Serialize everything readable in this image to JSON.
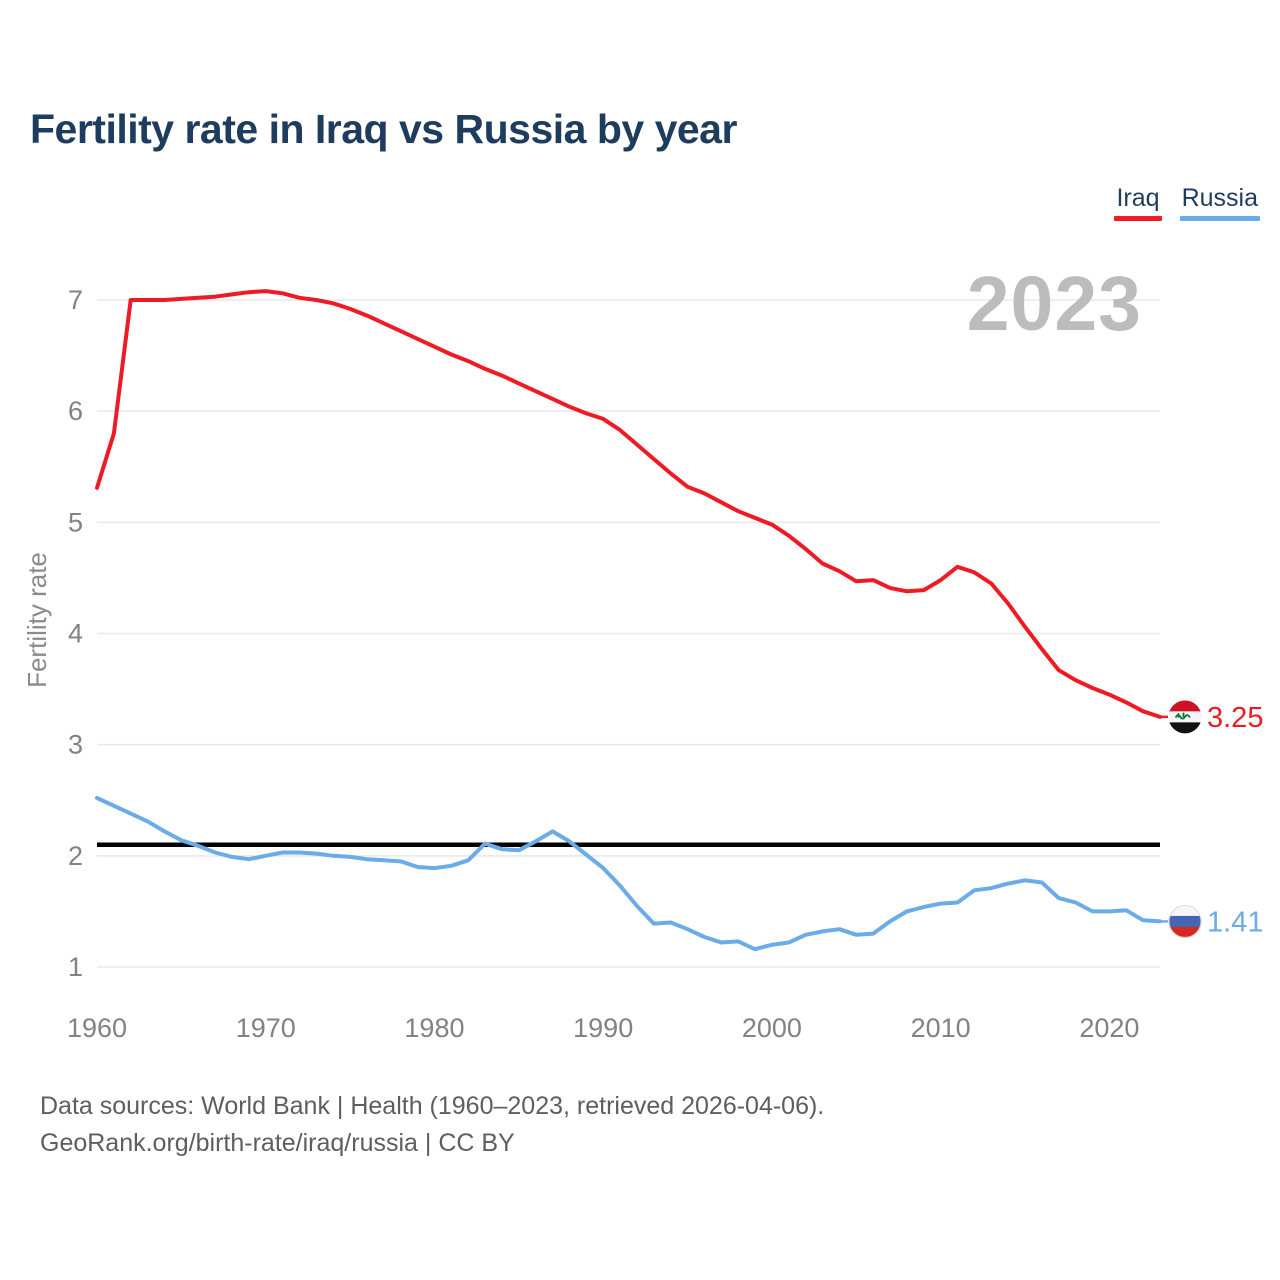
{
  "title": "Fertility rate in Iraq vs Russia by year",
  "watermark": "2023",
  "legend": {
    "items": [
      {
        "label": "Iraq",
        "color": "#ee1b24"
      },
      {
        "label": "Russia",
        "color": "#6aabe8"
      }
    ]
  },
  "end_labels": {
    "iraq": {
      "value": "3.25",
      "flag": "iraq-flag"
    },
    "russia": {
      "value": "1.41",
      "flag": "russia-flag"
    }
  },
  "footer": {
    "line1": "Data sources: World Bank | Health (1960–2023, retrieved 2026-04-06).",
    "line2": "GeoRank.org/birth-rate/iraq/russia | CC BY"
  },
  "chart_data": {
    "type": "line",
    "title": "Fertility rate in Iraq vs Russia by year",
    "xlabel": "",
    "ylabel": "Fertility rate",
    "xlim": [
      1960,
      2023
    ],
    "ylim": [
      1,
      7
    ],
    "x_ticks": [
      1960,
      1970,
      1980,
      1990,
      2000,
      2010,
      2020
    ],
    "y_ticks": [
      1,
      2,
      3,
      4,
      5,
      6,
      7
    ],
    "grid": "horizontal",
    "legend_position": "top-right",
    "reference_line": {
      "value": 2.1,
      "color": "#000000",
      "name": "replacement-rate"
    },
    "x": [
      1960,
      1961,
      1962,
      1963,
      1964,
      1965,
      1966,
      1967,
      1968,
      1969,
      1970,
      1971,
      1972,
      1973,
      1974,
      1975,
      1976,
      1977,
      1978,
      1979,
      1980,
      1981,
      1982,
      1983,
      1984,
      1985,
      1986,
      1987,
      1988,
      1989,
      1990,
      1991,
      1992,
      1993,
      1994,
      1995,
      1996,
      1997,
      1998,
      1999,
      2000,
      2001,
      2002,
      2003,
      2004,
      2005,
      2006,
      2007,
      2008,
      2009,
      2010,
      2011,
      2012,
      2013,
      2014,
      2015,
      2016,
      2017,
      2018,
      2019,
      2020,
      2021,
      2022,
      2023
    ],
    "series": [
      {
        "name": "Iraq",
        "color": "#ee1b24",
        "end_value": 3.25,
        "values": [
          5.31,
          5.8,
          7.0,
          7.0,
          7.0,
          7.01,
          7.02,
          7.03,
          7.05,
          7.07,
          7.08,
          7.06,
          7.02,
          7.0,
          6.97,
          6.92,
          6.86,
          6.79,
          6.72,
          6.65,
          6.58,
          6.51,
          6.45,
          6.38,
          6.32,
          6.25,
          6.18,
          6.11,
          6.04,
          5.98,
          5.93,
          5.83,
          5.7,
          5.57,
          5.44,
          5.32,
          5.26,
          5.18,
          5.1,
          5.04,
          4.98,
          4.88,
          4.76,
          4.63,
          4.56,
          4.47,
          4.48,
          4.41,
          4.38,
          4.39,
          4.48,
          4.6,
          4.55,
          4.45,
          4.27,
          4.06,
          3.86,
          3.67,
          3.58,
          3.51,
          3.45,
          3.38,
          3.3,
          3.25
        ]
      },
      {
        "name": "Russia",
        "color": "#6aabe8",
        "end_value": 1.41,
        "values": [
          2.52,
          2.45,
          2.38,
          2.31,
          2.22,
          2.14,
          2.09,
          2.03,
          1.99,
          1.97,
          2.0,
          2.03,
          2.03,
          2.02,
          2.0,
          1.99,
          1.97,
          1.96,
          1.95,
          1.9,
          1.89,
          1.91,
          1.96,
          2.11,
          2.06,
          2.05,
          2.13,
          2.22,
          2.13,
          2.01,
          1.89,
          1.73,
          1.55,
          1.39,
          1.4,
          1.34,
          1.27,
          1.22,
          1.23,
          1.16,
          1.2,
          1.22,
          1.29,
          1.32,
          1.34,
          1.29,
          1.3,
          1.41,
          1.5,
          1.54,
          1.57,
          1.58,
          1.69,
          1.71,
          1.75,
          1.78,
          1.76,
          1.62,
          1.58,
          1.5,
          1.5,
          1.51,
          1.42,
          1.41
        ]
      }
    ]
  }
}
